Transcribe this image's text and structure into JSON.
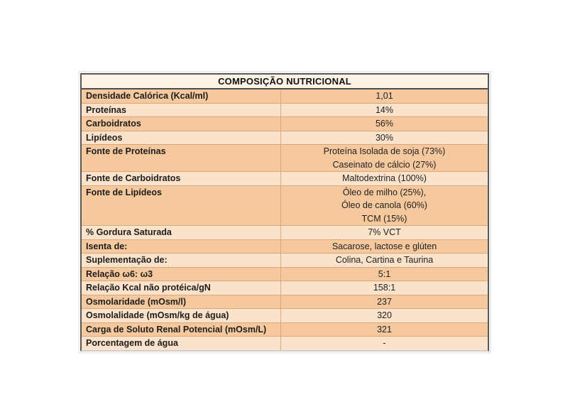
{
  "table": {
    "title": "COMPOSIÇÃO NUTRICIONAL",
    "colors": {
      "header_bg": "#fdf3e7",
      "row_dark": "#f5c89e",
      "row_light": "#fbe2cb",
      "separator": "#d8a97c",
      "border_dark": "#585858",
      "text": "#1c1c1c"
    },
    "rows": [
      {
        "label": "Densidade Calórica (Kcal/ml)",
        "values": [
          "1,01"
        ],
        "shade": "dark"
      },
      {
        "label": "Proteínas",
        "values": [
          "14%"
        ],
        "shade": "light"
      },
      {
        "label": "Carboidratos",
        "values": [
          "56%"
        ],
        "shade": "dark"
      },
      {
        "label": "Lipídeos",
        "values": [
          "30%"
        ],
        "shade": "light"
      },
      {
        "label": "Fonte de Proteínas",
        "values": [
          "Proteína Isolada de soja (73%)",
          "Caseinato de cálcio (27%)"
        ],
        "shade": "dark"
      },
      {
        "label": "Fonte de Carboidratos",
        "values": [
          "Maltodextrina (100%)"
        ],
        "shade": "light"
      },
      {
        "label": "Fonte de Lipídeos",
        "values": [
          "Óleo de milho (25%),",
          "Óleo de canola (60%)",
          "TCM (15%)"
        ],
        "shade": "dark"
      },
      {
        "label": "% Gordura Saturada",
        "values": [
          "7% VCT"
        ],
        "shade": "light"
      },
      {
        "label": "Isenta de:",
        "values": [
          "Sacarose, lactose e glúten"
        ],
        "shade": "dark"
      },
      {
        "label": "Suplementação de:",
        "values": [
          "Colina, Cartina e Taurina"
        ],
        "shade": "light"
      },
      {
        "label": "Relação ω6: ω3",
        "values": [
          "5:1"
        ],
        "shade": "dark"
      },
      {
        "label": "Relação Kcal não protéica/gN",
        "values": [
          "158:1"
        ],
        "shade": "light"
      },
      {
        "label": "Osmolaridade (mOsm/l)",
        "values": [
          "237"
        ],
        "shade": "dark"
      },
      {
        "label": "Osmolalidade (mOsm/kg de água)",
        "values": [
          "320"
        ],
        "shade": "light"
      },
      {
        "label": "Carga de Soluto Renal Potencial (mOsm/L)",
        "values": [
          "321"
        ],
        "shade": "dark"
      },
      {
        "label": "Porcentagem de água",
        "values": [
          "-"
        ],
        "shade": "light"
      }
    ]
  }
}
